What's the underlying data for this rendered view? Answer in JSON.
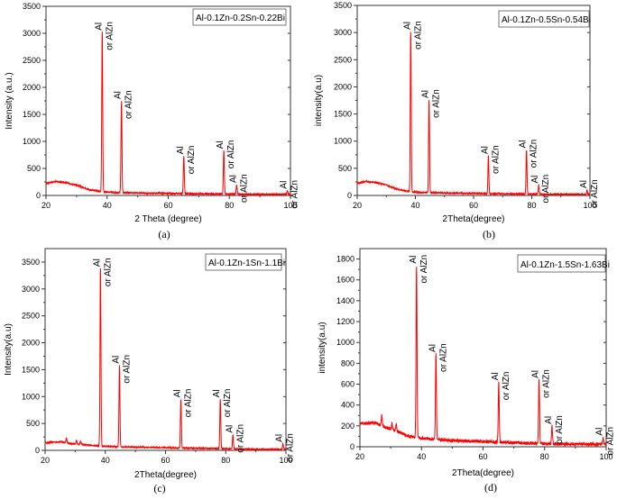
{
  "chart_data": [
    {
      "type": "line",
      "caption": "(a)",
      "legend": "Al-0.1Zn-0.2Sn-0.22Bi",
      "xlabel": "2 Theta (degree)",
      "ylabel": "Intensity (a.u.)",
      "xlim": [
        20,
        100
      ],
      "ylim": [
        0,
        3500
      ],
      "xticks": [
        20,
        40,
        60,
        80,
        100
      ],
      "yticks": [
        0,
        500,
        1000,
        1500,
        2000,
        2500,
        3000,
        3500
      ],
      "color": "#ff0000",
      "background": {
        "points": [
          [
            20,
            220
          ],
          [
            23,
            260
          ],
          [
            27,
            230
          ],
          [
            30,
            190
          ],
          [
            34,
            110
          ],
          [
            38,
            70
          ],
          [
            42,
            55
          ],
          [
            50,
            45
          ],
          [
            60,
            40
          ],
          [
            70,
            30
          ],
          [
            80,
            25
          ],
          [
            90,
            20
          ],
          [
            100,
            20
          ]
        ]
      },
      "noise": 25,
      "peaks": [
        {
          "x": 38.4,
          "y": 3020,
          "label1": "Al",
          "label2": "or AlZn"
        },
        {
          "x": 44.7,
          "y": 1750,
          "label1": "Al",
          "label2": "or AlZn"
        },
        {
          "x": 65.1,
          "y": 730,
          "label1": "Al",
          "label2": "or AlZn"
        },
        {
          "x": 78.2,
          "y": 830,
          "label1": "Al",
          "label2": "or AlZn"
        },
        {
          "x": 82.4,
          "y": 200,
          "label1": "Al",
          "label2": "or AlZn"
        },
        {
          "x": 99.0,
          "y": 90,
          "label1": "Al",
          "label2": "or AlZn"
        }
      ]
    },
    {
      "type": "line",
      "caption": "(b)",
      "legend": "Al-0.1Zn-0.5Sn-0.54Bi",
      "xlabel": "2Theta(degree)",
      "ylabel": "intensity(a.u)",
      "xlim": [
        20,
        100
      ],
      "ylim": [
        0,
        3500
      ],
      "xticks": [
        20,
        40,
        60,
        80,
        100
      ],
      "yticks": [
        0,
        500,
        1000,
        1500,
        2000,
        2500,
        3000,
        3500
      ],
      "color": "#ff0000",
      "background": {
        "points": [
          [
            20,
            220
          ],
          [
            23,
            260
          ],
          [
            27,
            230
          ],
          [
            30,
            190
          ],
          [
            34,
            110
          ],
          [
            38,
            70
          ],
          [
            42,
            55
          ],
          [
            50,
            45
          ],
          [
            60,
            40
          ],
          [
            70,
            30
          ],
          [
            80,
            25
          ],
          [
            90,
            20
          ],
          [
            100,
            20
          ]
        ]
      },
      "noise": 25,
      "peaks": [
        {
          "x": 38.4,
          "y": 3020,
          "label1": "Al",
          "label2": "or AlZn"
        },
        {
          "x": 44.7,
          "y": 1760,
          "label1": "Al",
          "label2": "or AlZn"
        },
        {
          "x": 65.1,
          "y": 730,
          "label1": "Al",
          "label2": "or AlZn"
        },
        {
          "x": 78.2,
          "y": 840,
          "label1": "Al",
          "label2": "or AlZn"
        },
        {
          "x": 82.4,
          "y": 190,
          "label1": "Al",
          "label2": "or AlZn"
        },
        {
          "x": 99.0,
          "y": 100,
          "label1": "Al",
          "label2": "or AlZn"
        }
      ]
    },
    {
      "type": "line",
      "caption": "(c)",
      "legend": "Al-0.1Zn-1Sn-1.1Bi",
      "xlabel": "2Theta(degree)",
      "ylabel": "Intensity(a.u)",
      "xlim": [
        20,
        100
      ],
      "ylim": [
        0,
        3750
      ],
      "xticks": [
        20,
        40,
        60,
        80,
        100
      ],
      "yticks": [
        0,
        500,
        1000,
        1500,
        2000,
        2500,
        3000,
        3500
      ],
      "color": "#ff0000",
      "background": {
        "points": [
          [
            20,
            140
          ],
          [
            25,
            160
          ],
          [
            28,
            130
          ],
          [
            32,
            110
          ],
          [
            36,
            90
          ],
          [
            38,
            80
          ],
          [
            42,
            70
          ],
          [
            50,
            60
          ],
          [
            60,
            50
          ],
          [
            70,
            40
          ],
          [
            80,
            30
          ],
          [
            90,
            20
          ],
          [
            100,
            20
          ]
        ]
      },
      "noise": 20,
      "peaks": [
        {
          "x": 27.1,
          "y": 230,
          "label1": "",
          "label2": ""
        },
        {
          "x": 30.4,
          "y": 190,
          "label1": "",
          "label2": ""
        },
        {
          "x": 31.8,
          "y": 170,
          "label1": "",
          "label2": ""
        },
        {
          "x": 38.4,
          "y": 3380,
          "label1": "Al",
          "label2": "or AlZn"
        },
        {
          "x": 44.7,
          "y": 1580,
          "label1": "Al",
          "label2": "or AlZn"
        },
        {
          "x": 65.1,
          "y": 950,
          "label1": "Al",
          "label2": "or AlZn"
        },
        {
          "x": 78.2,
          "y": 950,
          "label1": "Al",
          "label2": "or AlZn"
        },
        {
          "x": 82.4,
          "y": 290,
          "label1": "Al",
          "label2": "or AlZn"
        },
        {
          "x": 99.0,
          "y": 120,
          "label1": "Al",
          "label2": "or AlZn"
        }
      ]
    },
    {
      "type": "line",
      "caption": "(d)",
      "legend": "Al-0.1Zn-1.5Sn-1.63Bi",
      "xlabel": "2Theta(degree)",
      "ylabel": "intensity(a.u)",
      "xlim": [
        20,
        100
      ],
      "ylim": [
        0,
        1900
      ],
      "xticks": [
        20,
        40,
        60,
        80,
        100
      ],
      "yticks": [
        0,
        200,
        400,
        600,
        800,
        1000,
        1200,
        1400,
        1600,
        1800
      ],
      "color": "#ff0000",
      "background": {
        "points": [
          [
            20,
            220
          ],
          [
            25,
            230
          ],
          [
            28,
            190
          ],
          [
            32,
            150
          ],
          [
            36,
            100
          ],
          [
            38,
            90
          ],
          [
            42,
            75
          ],
          [
            50,
            60
          ],
          [
            60,
            50
          ],
          [
            70,
            40
          ],
          [
            80,
            30
          ],
          [
            90,
            25
          ],
          [
            100,
            25
          ]
        ]
      },
      "noise": 30,
      "peaks": [
        {
          "x": 27.1,
          "y": 300,
          "label1": "",
          "label2": ""
        },
        {
          "x": 30.4,
          "y": 230,
          "label1": "",
          "label2": ""
        },
        {
          "x": 31.8,
          "y": 220,
          "label1": "",
          "label2": ""
        },
        {
          "x": 38.4,
          "y": 1740,
          "label1": "Al",
          "label2": "or AlZn"
        },
        {
          "x": 44.7,
          "y": 890,
          "label1": "Al",
          "label2": "or AlZn"
        },
        {
          "x": 65.1,
          "y": 620,
          "label1": "Al",
          "label2": "or AlZn"
        },
        {
          "x": 78.2,
          "y": 640,
          "label1": "Al",
          "label2": "or AlZn"
        },
        {
          "x": 82.4,
          "y": 200,
          "label1": "Al",
          "label2": "or AlZn"
        },
        {
          "x": 99.0,
          "y": 90,
          "label1": "Al",
          "label2": "or AlZn"
        }
      ]
    }
  ]
}
